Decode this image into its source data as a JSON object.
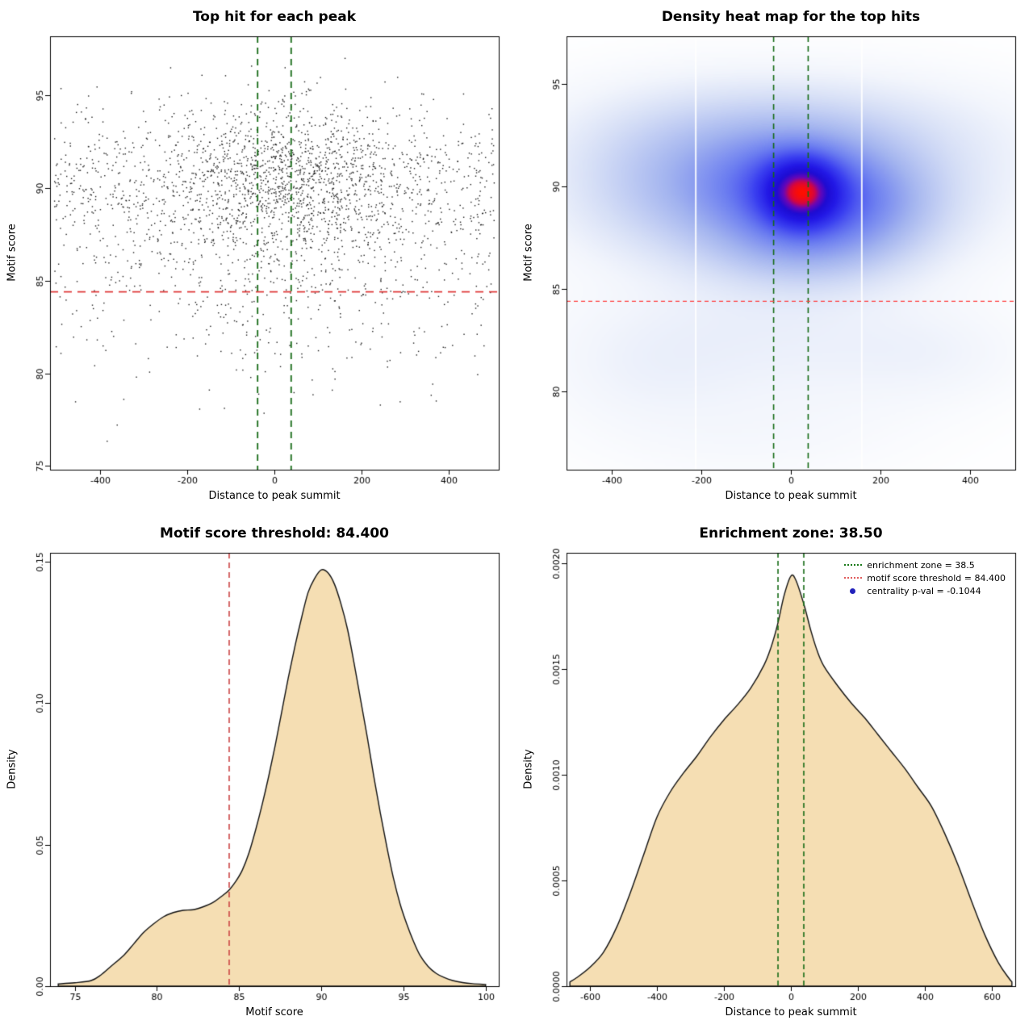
{
  "figure": {
    "background": "#ffffff",
    "panel_size": 640
  },
  "chart_data": [
    {
      "id": "top-hit-scatter",
      "type": "scatter",
      "title": "Top hit for each peak",
      "xlabel": "Distance to peak summit",
      "ylabel": "Motif score",
      "xlim": [
        -515,
        515
      ],
      "ylim": [
        74.8,
        98.2
      ],
      "xticks": {
        "values": [
          -400,
          -200,
          0,
          200,
          400
        ],
        "labels": [
          "-400",
          "-200",
          "0",
          "200",
          "400"
        ]
      },
      "yticks": {
        "values": [
          75,
          80,
          85,
          90,
          95
        ],
        "labels": [
          "75",
          "80",
          "85",
          "90",
          "95"
        ]
      },
      "points": {
        "seed": 1337,
        "n": 2600,
        "y_main_p": 0.8,
        "y_main_mean": 90.2,
        "y_main_sd": 2.15,
        "y_tail_mean": 84.8,
        "y_tail_sd": 3.0,
        "y_min": 75.3,
        "y_max": 97.7,
        "x_center_p_high": 0.5,
        "x_center_p_low": 0.3,
        "x_center_mean": 30,
        "x_center_sd": 150,
        "x_min": -505,
        "x_max": 505
      },
      "point_color": "#1c1c1c",
      "vlines": [
        {
          "x": -38.5,
          "color": "#166b16",
          "width": 1.8,
          "dash": [
            8,
            6
          ]
        },
        {
          "x": 38.5,
          "color": "#166b16",
          "width": 1.8,
          "dash": [
            8,
            6
          ]
        }
      ],
      "hlines": [
        {
          "y": 84.4,
          "color": "#e03c3c",
          "width": 1.8,
          "dash": [
            10,
            7
          ]
        }
      ]
    },
    {
      "id": "density-heatmap",
      "type": "heatmap",
      "title": "Density heat map for the top hits",
      "xlabel": "Distance to peak summit",
      "ylabel": "Motif score",
      "xlim": [
        -500,
        500
      ],
      "ylim": [
        76.2,
        97.3
      ],
      "xticks": {
        "values": [
          -400,
          -200,
          0,
          200,
          400
        ],
        "labels": [
          "-400",
          "-200",
          "0",
          "200",
          "400"
        ]
      },
      "yticks": {
        "values": [
          80,
          85,
          90,
          95
        ],
        "labels": [
          "80",
          "85",
          "90",
          "95"
        ]
      },
      "kernels": [
        {
          "x": 25,
          "y": 89.7,
          "sx": 55,
          "sy": 1.1,
          "w": 1.0
        },
        {
          "x": 10,
          "y": 89.7,
          "sx": 130,
          "sy": 1.9,
          "w": 0.6
        },
        {
          "x": 0,
          "y": 89.8,
          "sx": 280,
          "sy": 2.6,
          "w": 0.38
        },
        {
          "x": 180,
          "y": 89.0,
          "sx": 110,
          "sy": 1.7,
          "w": 0.28
        },
        {
          "x": -230,
          "y": 90.2,
          "sx": 170,
          "sy": 2.3,
          "w": 0.22
        },
        {
          "x": 0,
          "y": 92.8,
          "sx": 320,
          "sy": 1.8,
          "w": 0.15
        },
        {
          "x": 30,
          "y": 86.8,
          "sx": 140,
          "sy": 1.3,
          "w": 0.22
        },
        {
          "x": -100,
          "y": 83.3,
          "sx": 300,
          "sy": 1.6,
          "w": 0.07
        },
        {
          "x": -330,
          "y": 80.8,
          "sx": 160,
          "sy": 1.8,
          "w": 0.07
        },
        {
          "x": 50,
          "y": 80.8,
          "sx": 250,
          "sy": 2.0,
          "w": 0.06
        },
        {
          "x": 330,
          "y": 81.8,
          "sx": 140,
          "sy": 1.5,
          "w": 0.05
        },
        {
          "x": -100,
          "y": 77.5,
          "sx": 250,
          "sy": 1.5,
          "w": 0.04
        }
      ],
      "gamma": 0.85,
      "color_stops": [
        [
          0,
          "#ffffff"
        ],
        [
          0.06,
          "#f2f5fc"
        ],
        [
          0.15,
          "#d5def6"
        ],
        [
          0.3,
          "#a3b4ef"
        ],
        [
          0.45,
          "#6d7ff0"
        ],
        [
          0.6,
          "#3a3ff0"
        ],
        [
          0.72,
          "#2218e6"
        ],
        [
          0.82,
          "#1d0bd2"
        ],
        [
          0.9,
          "#6a06b6"
        ],
        [
          0.95,
          "#d40540"
        ],
        [
          1,
          "#ff0e00"
        ]
      ],
      "white_streaks": [
        -212,
        158
      ],
      "vlines": [
        {
          "x": -38.5,
          "color": "#156b15",
          "width": 1.6,
          "dash": [
            7,
            5
          ]
        },
        {
          "x": 38.5,
          "color": "#156b15",
          "width": 1.6,
          "dash": [
            7,
            5
          ]
        }
      ],
      "hlines": [
        {
          "y": 84.4,
          "color": "#ff4040",
          "width": 1.2,
          "dash": [
            5,
            4
          ]
        }
      ]
    },
    {
      "id": "motif-score-density",
      "type": "area",
      "title": "Motif score threshold: 84.400",
      "xlabel": "Motif score",
      "ylabel": "Density",
      "xlim": [
        73.5,
        100.8
      ],
      "ylim": [
        0,
        0.153
      ],
      "xticks": {
        "values": [
          75,
          80,
          85,
          90,
          95,
          100
        ],
        "labels": [
          "75",
          "80",
          "85",
          "90",
          "95",
          "100"
        ]
      },
      "yticks": {
        "values": [
          0,
          0.05,
          0.1,
          0.15
        ],
        "labels": [
          "0.00",
          "0.05",
          "0.10",
          "0.15"
        ]
      },
      "fill": "#f5deb3",
      "stroke": "#111111",
      "curve": [
        [
          74,
          0.0008
        ],
        [
          75,
          0.0012
        ],
        [
          76,
          0.002
        ],
        [
          76.6,
          0.004
        ],
        [
          77.2,
          0.007
        ],
        [
          78,
          0.011
        ],
        [
          78.6,
          0.015
        ],
        [
          79.2,
          0.019
        ],
        [
          79.8,
          0.022
        ],
        [
          80.4,
          0.0245
        ],
        [
          81,
          0.026
        ],
        [
          81.6,
          0.0268
        ],
        [
          82.2,
          0.027
        ],
        [
          82.8,
          0.028
        ],
        [
          83.4,
          0.0295
        ],
        [
          84,
          0.032
        ],
        [
          84.4,
          0.034
        ],
        [
          84.8,
          0.037
        ],
        [
          85.2,
          0.041
        ],
        [
          85.6,
          0.047
        ],
        [
          86,
          0.055
        ],
        [
          86.4,
          0.064
        ],
        [
          86.8,
          0.074
        ],
        [
          87.2,
          0.085
        ],
        [
          87.6,
          0.097
        ],
        [
          88,
          0.109
        ],
        [
          88.4,
          0.12
        ],
        [
          88.8,
          0.13
        ],
        [
          89.2,
          0.139
        ],
        [
          89.6,
          0.144
        ],
        [
          90,
          0.147
        ],
        [
          90.4,
          0.146
        ],
        [
          90.8,
          0.142
        ],
        [
          91.2,
          0.135
        ],
        [
          91.6,
          0.126
        ],
        [
          92,
          0.114
        ],
        [
          92.4,
          0.101
        ],
        [
          92.8,
          0.088
        ],
        [
          93.2,
          0.074
        ],
        [
          93.6,
          0.061
        ],
        [
          94,
          0.049
        ],
        [
          94.4,
          0.038
        ],
        [
          94.8,
          0.029
        ],
        [
          95.2,
          0.022
        ],
        [
          95.6,
          0.016
        ],
        [
          96,
          0.011
        ],
        [
          96.5,
          0.007
        ],
        [
          97,
          0.0045
        ],
        [
          97.5,
          0.003
        ],
        [
          98,
          0.002
        ],
        [
          98.6,
          0.0013
        ],
        [
          99.2,
          0.0009
        ],
        [
          100,
          0.0006
        ]
      ],
      "vlines": [
        {
          "x": 84.4,
          "color": "#cc4444",
          "width": 1.6,
          "dash": [
            7,
            5
          ]
        }
      ]
    },
    {
      "id": "distance-density",
      "type": "area",
      "title": "Enrichment zone: 38.50",
      "xlabel": "Distance to peak summit",
      "ylabel": "Density",
      "xlim": [
        -670,
        670
      ],
      "ylim": [
        0,
        0.00205
      ],
      "xticks": {
        "values": [
          -600,
          -400,
          -200,
          0,
          200,
          400,
          600
        ],
        "labels": [
          "-600",
          "-400",
          "-200",
          "0",
          "200",
          "400",
          "600"
        ]
      },
      "yticks": {
        "values": [
          0,
          0.0005,
          0.001,
          0.0015,
          0.002
        ],
        "labels": [
          "0.0000",
          "0.0005",
          "0.0010",
          "0.0015",
          "0.0020"
        ]
      },
      "fill": "#f5deb3",
      "stroke": "#111111",
      "curve": [
        [
          -660,
          2e-05
        ],
        [
          -640,
          4e-05
        ],
        [
          -600,
          9e-05
        ],
        [
          -560,
          0.00016
        ],
        [
          -520,
          0.00028
        ],
        [
          -480,
          0.00044
        ],
        [
          -440,
          0.00062
        ],
        [
          -400,
          0.0008
        ],
        [
          -360,
          0.00092
        ],
        [
          -320,
          0.00101
        ],
        [
          -280,
          0.00109
        ],
        [
          -240,
          0.00118
        ],
        [
          -200,
          0.00126
        ],
        [
          -160,
          0.00133
        ],
        [
          -120,
          0.00141
        ],
        [
          -80,
          0.00152
        ],
        [
          -60,
          0.0016
        ],
        [
          -40,
          0.00171
        ],
        [
          -20,
          0.00185
        ],
        [
          0,
          0.00194
        ],
        [
          15,
          0.00192
        ],
        [
          40,
          0.0018
        ],
        [
          60,
          0.00168
        ],
        [
          80,
          0.00158
        ],
        [
          100,
          0.00151
        ],
        [
          140,
          0.00142
        ],
        [
          180,
          0.00134
        ],
        [
          220,
          0.00127
        ],
        [
          260,
          0.00119
        ],
        [
          300,
          0.00111
        ],
        [
          340,
          0.00103
        ],
        [
          380,
          0.00094
        ],
        [
          420,
          0.00085
        ],
        [
          460,
          0.00072
        ],
        [
          500,
          0.00057
        ],
        [
          540,
          0.0004
        ],
        [
          580,
          0.00024
        ],
        [
          620,
          0.00011
        ],
        [
          650,
          4e-05
        ],
        [
          660,
          2e-05
        ]
      ],
      "vlines": [
        {
          "x": -38.5,
          "color": "#156b15",
          "width": 1.6,
          "dash": [
            6,
            4
          ]
        },
        {
          "x": 38.5,
          "color": "#156b15",
          "width": 1.6,
          "dash": [
            6,
            4
          ]
        }
      ],
      "legend": {
        "entries": [
          {
            "type": "line",
            "color": "#1a7a1a",
            "label": "enrichment zone = 38.5"
          },
          {
            "type": "line",
            "color": "#e05c5c",
            "label": "motif score threshold = 84.400"
          },
          {
            "type": "dot",
            "color": "#2222bb",
            "label": "centrality p-val = -0.1044"
          }
        ]
      }
    }
  ]
}
